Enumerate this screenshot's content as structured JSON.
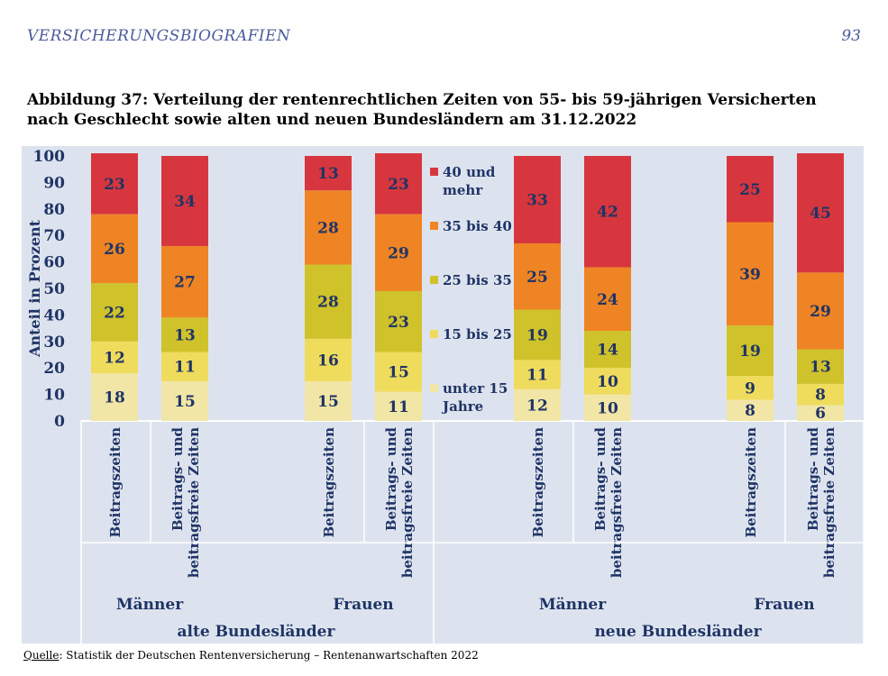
{
  "header": {
    "running_title": "VERSICHERUNGSBIOGRAFIEN",
    "page_number": "93"
  },
  "figure": {
    "title_line1": "Abbildung 37: Verteilung der rentenrechtlichen Zeiten von 55- bis 59-jährigen Versicherten",
    "title_line2": "nach Geschlecht sowie alten und neuen Bundesländern am 31.12.2022"
  },
  "source": {
    "label": "Quelle",
    "text": ": Statistik der Deutschen Rentenversicherung – Rentenanwartschaften 2022"
  },
  "colors": {
    "background": "#dde3ee",
    "segments": [
      "#f2e6a6",
      "#efdc5c",
      "#cfc22a",
      "#ef8424",
      "#d7363e"
    ],
    "text": "#1f3466"
  },
  "chart_data": {
    "type": "bar",
    "stacked": true,
    "ylabel": "Anteil in Prozent",
    "ylim": [
      0,
      100
    ],
    "yticks": [
      0,
      10,
      20,
      30,
      40,
      50,
      60,
      70,
      80,
      90,
      100
    ],
    "segment_names": [
      "unter 15 Jahre",
      "15 bis 25",
      "25 bis 35",
      "35 bis 40",
      "40 und mehr"
    ],
    "legend": [
      {
        "lines": [
          "40 und",
          "mehr"
        ]
      },
      {
        "lines": [
          "35 bis 40"
        ]
      },
      {
        "lines": [
          "25 bis 35"
        ]
      },
      {
        "lines": [
          "15 bis 25"
        ]
      },
      {
        "lines": [
          "unter 15",
          "Jahre"
        ]
      }
    ],
    "bars": [
      {
        "label_lines": [
          "Beitragszeiten"
        ],
        "values": [
          18,
          12,
          22,
          26,
          23
        ]
      },
      {
        "label_lines": [
          "Beitrags- und",
          "beitragsfreie Zeiten"
        ],
        "values": [
          15,
          11,
          13,
          27,
          34
        ]
      },
      {
        "label_lines": [
          "Beitragszeiten"
        ],
        "values": [
          15,
          16,
          28,
          28,
          13
        ]
      },
      {
        "label_lines": [
          "Beitrags- und",
          "beitragsfreie Zeiten"
        ],
        "values": [
          11,
          15,
          23,
          29,
          23
        ]
      },
      {
        "label_lines": [
          "Beitragszeiten"
        ],
        "values": [
          12,
          11,
          19,
          25,
          33
        ]
      },
      {
        "label_lines": [
          "Beitrags- und",
          "beitragsfreie Zeiten"
        ],
        "values": [
          10,
          10,
          14,
          24,
          42
        ]
      },
      {
        "label_lines": [
          "Beitragszeiten"
        ],
        "values": [
          8,
          9,
          19,
          39,
          25
        ]
      },
      {
        "label_lines": [
          "Beitrags- und",
          "beitragsfreie Zeiten"
        ],
        "values": [
          6,
          8,
          13,
          29,
          45
        ]
      }
    ],
    "gender_groups": [
      "Männer",
      "Frauen",
      "Männer",
      "Frauen"
    ],
    "region_groups": [
      "alte Bundesländer",
      "neue Bundesländer"
    ]
  }
}
